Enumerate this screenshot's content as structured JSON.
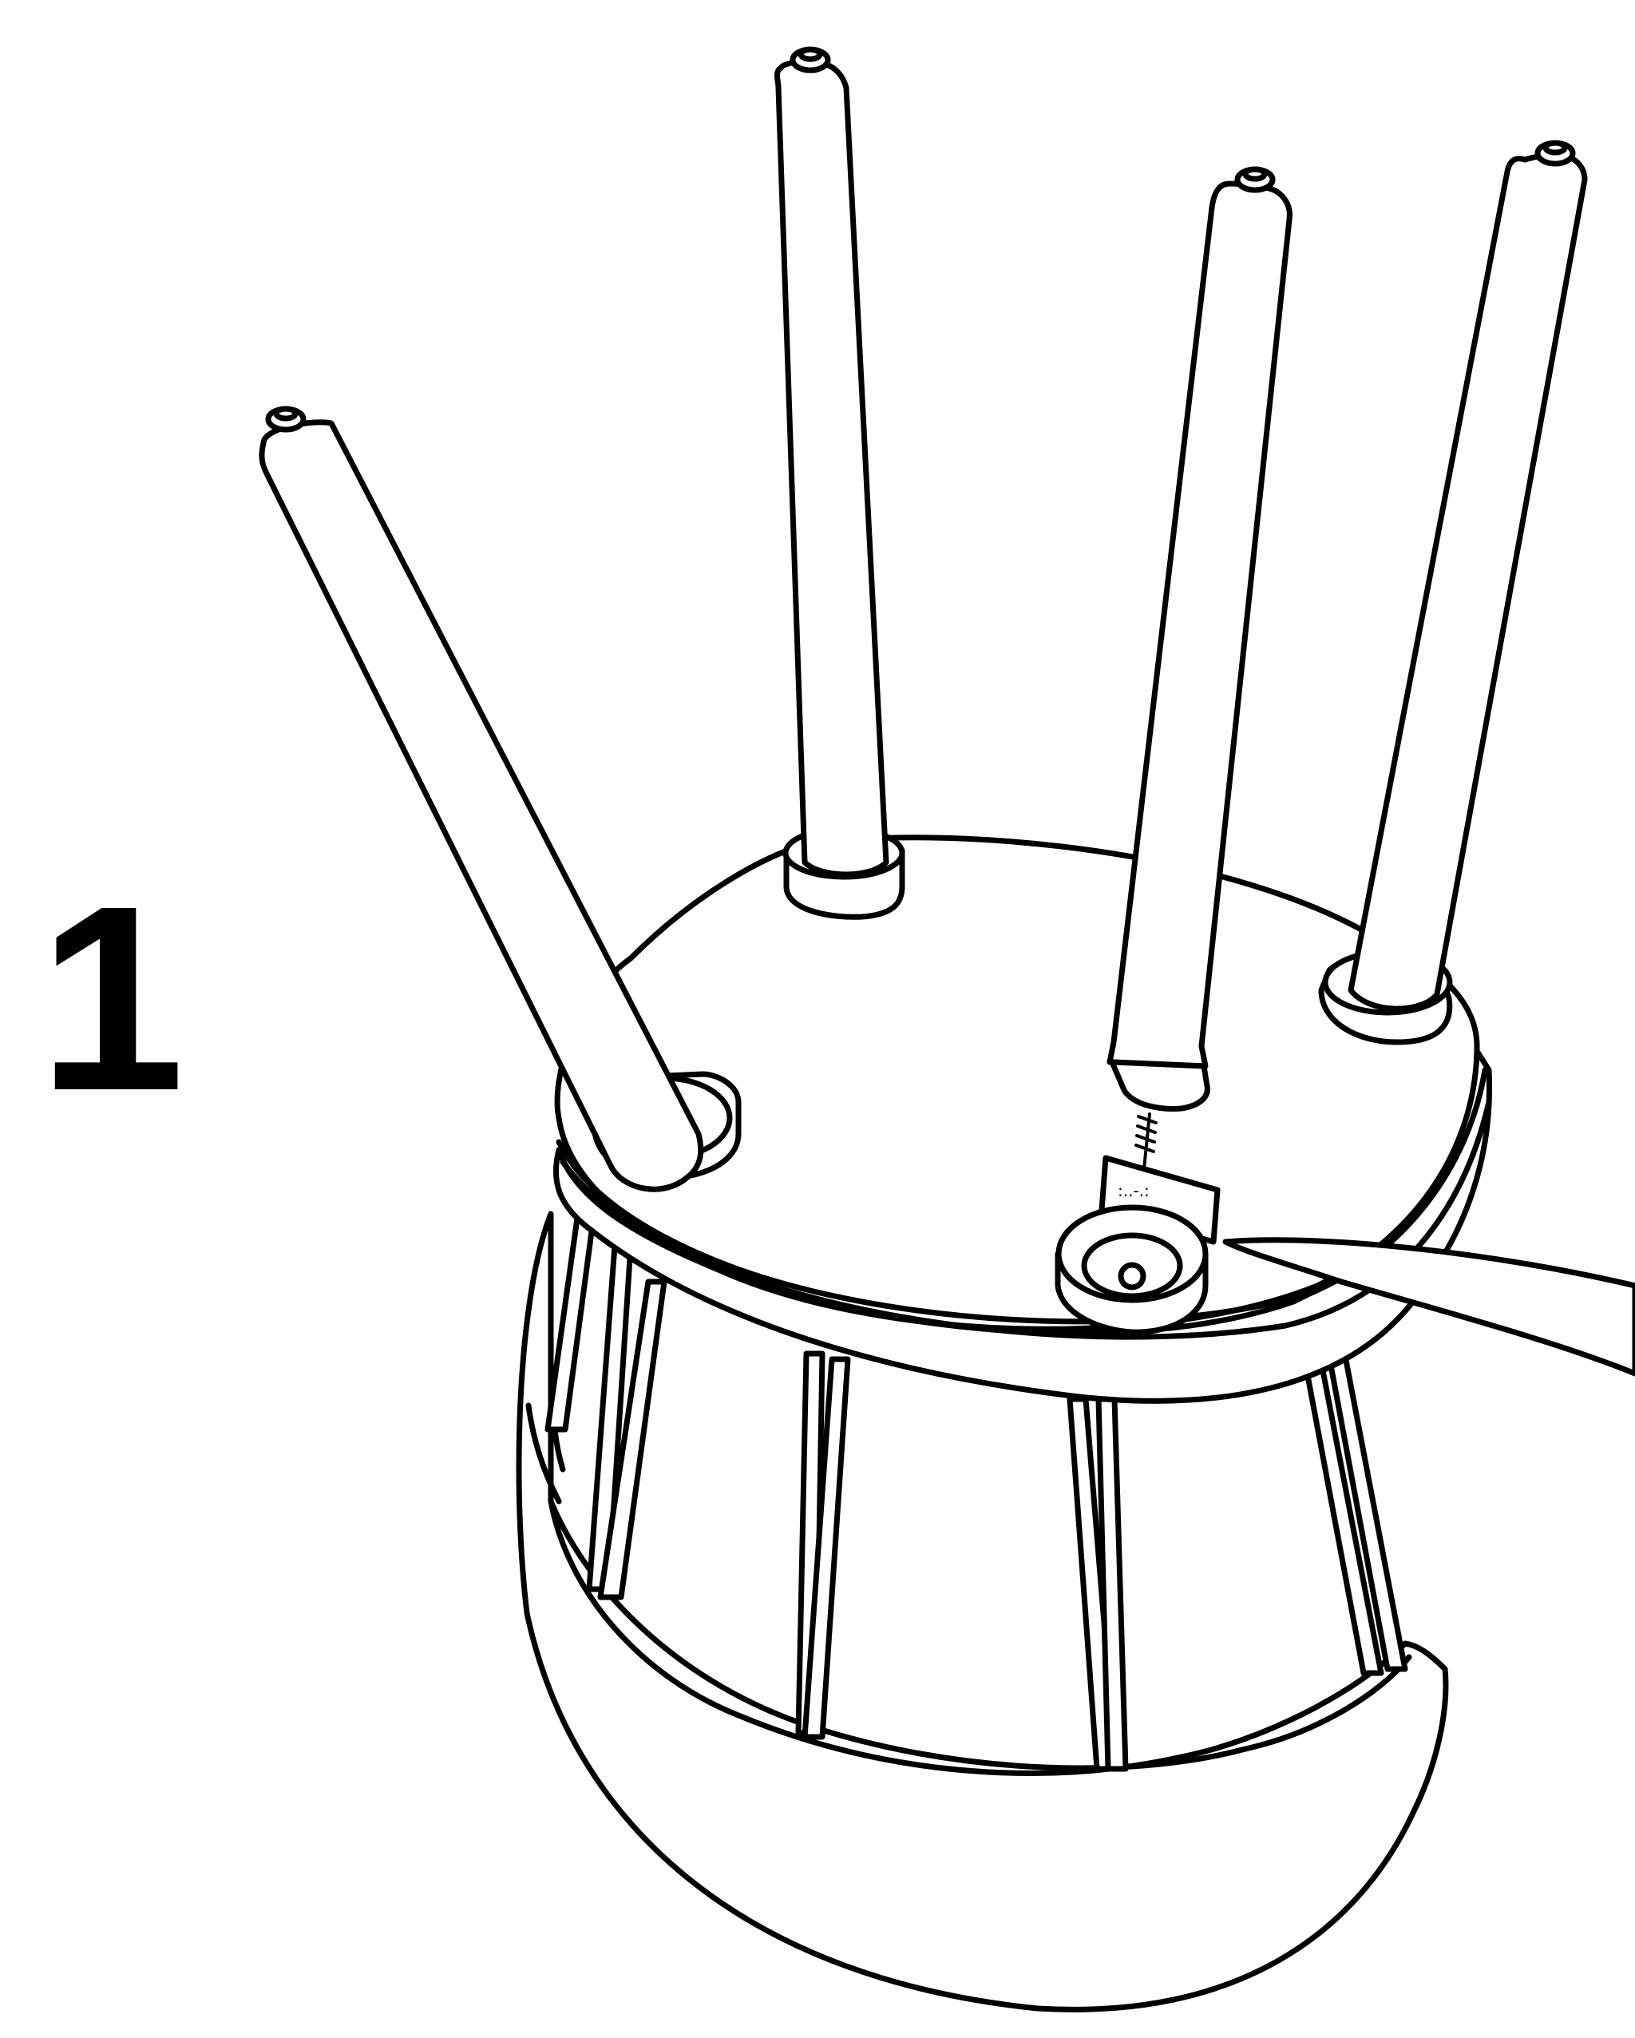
{
  "step": {
    "number": "1"
  },
  "colors": {
    "line": "#000000",
    "background": "#ffffff"
  }
}
